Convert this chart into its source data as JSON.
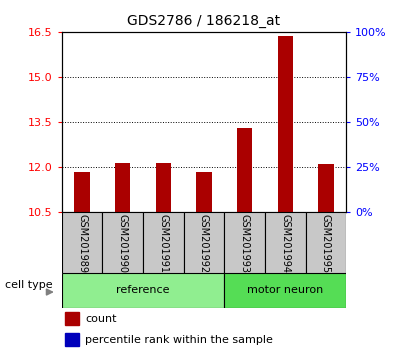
{
  "title": "GDS2786 / 186218_at",
  "samples": [
    "GSM201989",
    "GSM201990",
    "GSM201991",
    "GSM201992",
    "GSM201993",
    "GSM201994",
    "GSM201995"
  ],
  "red_values": [
    11.85,
    12.15,
    12.15,
    11.85,
    13.3,
    16.35,
    12.1
  ],
  "blue_values": [
    0.3,
    0.3,
    0.3,
    0.3,
    0.3,
    0.3,
    0.3
  ],
  "ylim_left": [
    10.5,
    16.5
  ],
  "yticks_left": [
    10.5,
    12.0,
    13.5,
    15.0,
    16.5
  ],
  "yticks_right": [
    0,
    25,
    50,
    75,
    100
  ],
  "ylim_right": [
    0,
    100
  ],
  "groups": [
    {
      "label": "reference",
      "indices": [
        0,
        1,
        2,
        3
      ],
      "color": "#90EE90"
    },
    {
      "label": "motor neuron",
      "indices": [
        4,
        5,
        6
      ],
      "color": "#55DD55"
    }
  ],
  "cell_type_label": "cell type",
  "legend_red": "count",
  "legend_blue": "percentile rank within the sample",
  "bar_color_red": "#AA0000",
  "bar_color_blue": "#0000BB",
  "sample_box_color": "#C8C8C8",
  "fig_width": 3.98,
  "fig_height": 3.54,
  "dpi": 100
}
